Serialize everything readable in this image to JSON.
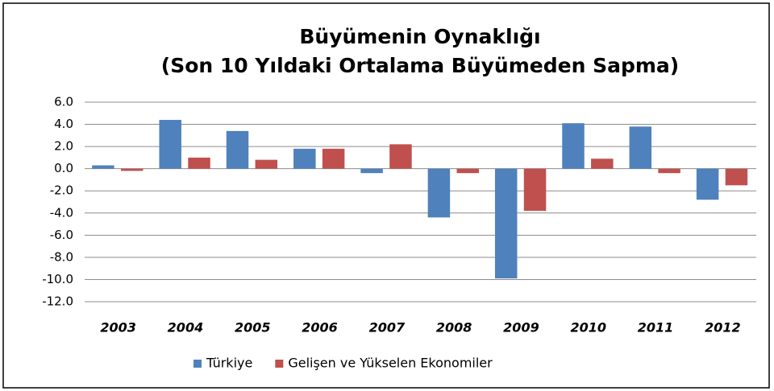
{
  "chart_data": {
    "type": "bar",
    "title": "Büyümenin Oynaklığı",
    "subtitle": "(Son 10 Yıldaki Ortalama Büyümeden Sapma)",
    "categories": [
      "2003",
      "2004",
      "2005",
      "2006",
      "2007",
      "2008",
      "2009",
      "2010",
      "2011",
      "2012"
    ],
    "series": [
      {
        "name": "Türkiye",
        "color": "#4f81bd",
        "values": [
          0.3,
          4.4,
          3.4,
          1.8,
          -0.4,
          -4.4,
          -9.9,
          4.1,
          3.8,
          -2.8
        ]
      },
      {
        "name": "Gelişen ve Yükselen Ekonomiler",
        "color": "#c0504d",
        "values": [
          -0.2,
          1.0,
          0.8,
          1.8,
          2.2,
          -0.4,
          -3.8,
          0.9,
          -0.4,
          -1.5
        ]
      }
    ],
    "ylim": [
      -12,
      6
    ],
    "yticks": [
      {
        "value": 6,
        "label": "6.0"
      },
      {
        "value": 4,
        "label": "4.0"
      },
      {
        "value": 2,
        "label": "2.0"
      },
      {
        "value": 0,
        "label": "0.0"
      },
      {
        "value": -2,
        "label": "-2.0"
      },
      {
        "value": -4,
        "label": "-4.0"
      },
      {
        "value": -6,
        "label": "-6.0"
      },
      {
        "value": -8,
        "label": "-8.0"
      },
      {
        "value": -10,
        "label": "-10.0"
      },
      {
        "value": -12,
        "label": "-12.0"
      }
    ],
    "grid": true,
    "legend": "bottom"
  }
}
